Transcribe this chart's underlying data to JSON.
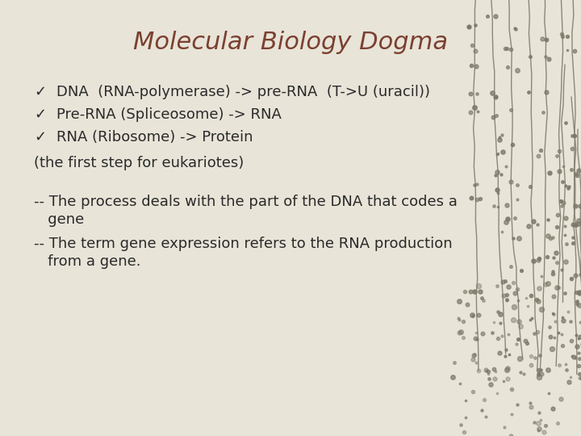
{
  "title": "Molecular Biology Dogma",
  "title_color": "#7B4030",
  "title_fontsize": 22,
  "title_style": "italic",
  "title_font": "Georgia",
  "bg_color": "#E8E4D8",
  "text_color": "#2A2A2A",
  "bullet_items": [
    "DNA  (RNA-polymerase) -> pre-RNA  (T->U (uracil))",
    "Pre-RNA (Spliceosome) -> RNA",
    "RNA (Ribosome) -> Protein"
  ],
  "note_line": "(the first step for eukariotes)",
  "dash_items": [
    [
      "-- The process deals with the part of the DNA that codes a",
      "   gene"
    ],
    [
      "-- The term gene expression refers to the RNA production",
      "   from a gene."
    ]
  ],
  "body_fontsize": 13,
  "body_font": "Georgia",
  "check_mark": "✓",
  "branch_color": "#7A7868",
  "dot_color": "#7A7868"
}
